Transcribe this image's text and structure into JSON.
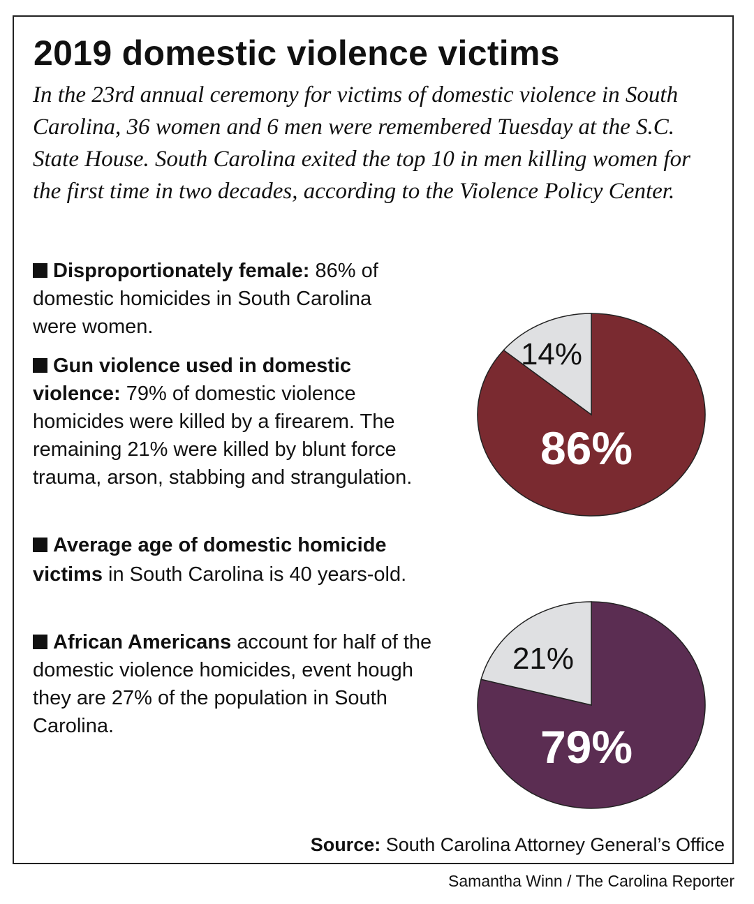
{
  "title": "2019 domestic violence victims",
  "intro": "In the 23rd annual ceremony for victims of domestic violence in South Carolina, 36 women and 6 men were remembered Tuesday at the S.C. State House. South Carolina exited the top 10 in men killing women for the first time in two decades, according to the Violence Policy Center.",
  "bullets": [
    {
      "bold": "Disproportionately female:",
      "text": " 86% of domestic homicides in South Carolina were women."
    },
    {
      "bold": "Gun violence used in domestic violence:",
      "text": " 79% of domestic violence homicides were killed by a firearem. The remaining 21% were killed by blunt force trauma, arson, stabbing and strangulation."
    },
    {
      "bold": "Average age of domestic homicide victims",
      "text": " in South Carolina is 40 years-old."
    },
    {
      "bold": "African Americans",
      "text": " account for half of the domestic violence homicides, event hough they are 27% of the population in South Carolina."
    }
  ],
  "source": {
    "label": "Source:",
    "text": " South Carolina Attorney General’s Office"
  },
  "credit": "Samantha Winn / The Carolina Reporter",
  "chart_data": [
    {
      "type": "pie",
      "values": [
        86,
        14
      ],
      "labels": [
        "86%",
        "14%"
      ],
      "colors": [
        "#7a2a30",
        "#dfe0e2"
      ]
    },
    {
      "type": "pie",
      "values": [
        79,
        21
      ],
      "labels": [
        "79%",
        "21%"
      ],
      "colors": [
        "#5b2d52",
        "#dfe0e2"
      ]
    }
  ]
}
